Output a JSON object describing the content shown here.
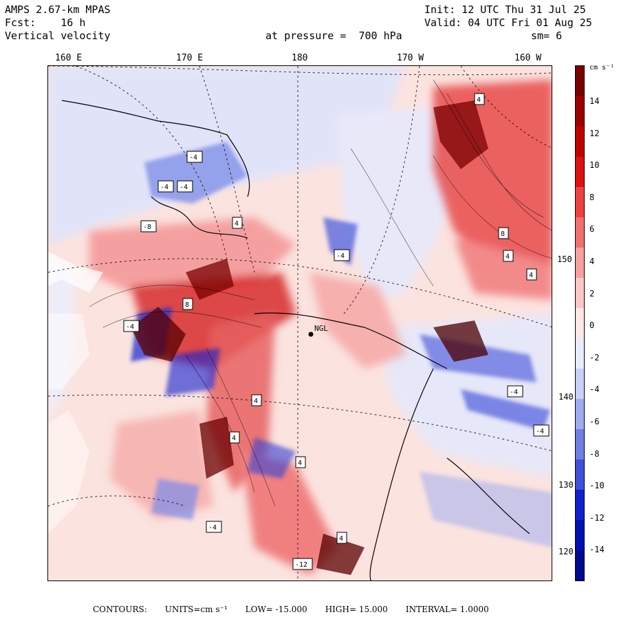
{
  "header": {
    "model": "AMPS 2.67-km MPAS",
    "fcst_label": "Fcst:",
    "fcst_value": "16 h",
    "field": "Vertical velocity",
    "pressure_label": "at pressure =",
    "pressure_value": "700 hPa",
    "init": "Init: 12 UTC Thu 31 Jul 25",
    "valid": "Valid: 04 UTC Fri 01 Aug 25",
    "smoothing": "sm= 6"
  },
  "map": {
    "lon_labels": [
      "160 E",
      "170 E",
      "180",
      "170 W",
      "160 W"
    ],
    "lat_labels": [
      "150 W",
      "140 W",
      "130 W",
      "120 W"
    ],
    "station_label": "NGL"
  },
  "colorbar": {
    "units": "cm s⁻¹",
    "tick_labels": [
      "14",
      "12",
      "10",
      "8",
      "6",
      "4",
      "2",
      "0",
      "-2",
      "-4",
      "-6",
      "-8",
      "-10",
      "-12",
      "-14"
    ],
    "colors": [
      "#7a0000",
      "#9e0000",
      "#c20000",
      "#e01010",
      "#f04040",
      "#f47070",
      "#f8a0a0",
      "#fbc8c6",
      "#fde8e6",
      "#e8ecfd",
      "#c8d0f8",
      "#a0acf0",
      "#7080e6",
      "#4050da",
      "#1020d0",
      "#0010b4",
      "#000a8c"
    ]
  },
  "footer": {
    "contours": "CONTOURS:",
    "units": "UNITS=cm s⁻¹",
    "low": "LOW= -15.000",
    "high": "HIGH= 15.000",
    "interval": "INTERVAL= 1.0000"
  }
}
